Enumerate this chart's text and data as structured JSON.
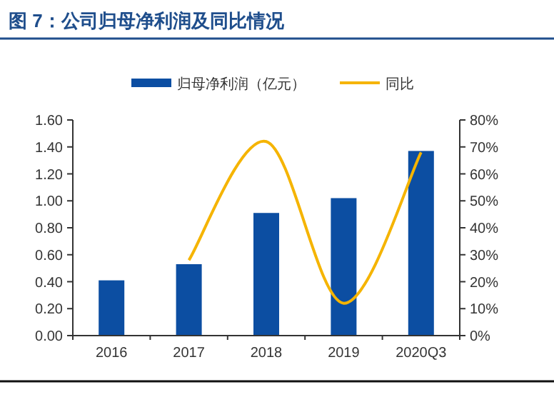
{
  "chart_data": {
    "type": "bar",
    "title": "图 7：公司归母净利润及同比情况",
    "categories": [
      "2016",
      "2017",
      "2018",
      "2019",
      "2020Q3"
    ],
    "series": [
      {
        "name": "归母净利润（亿元）",
        "color": "#0c4ea2",
        "values": [
          0.41,
          0.53,
          0.91,
          1.02,
          1.37
        ]
      },
      {
        "name": "同比",
        "type": "line",
        "axis": "y2",
        "color": "#f5b400",
        "marker": "none",
        "values": [
          null,
          28,
          72,
          12,
          68
        ]
      }
    ],
    "ylim": [
      0,
      1.6
    ],
    "yticks": [
      {
        "value": 0,
        "label": "0.00"
      },
      {
        "value": 0.2,
        "label": "0.20"
      },
      {
        "value": 0.4,
        "label": "0.40"
      },
      {
        "value": 0.6,
        "label": "0.60"
      },
      {
        "value": 0.8,
        "label": "0.80"
      },
      {
        "value": 1.0,
        "label": "1.00"
      },
      {
        "value": 1.2,
        "label": "1.20"
      },
      {
        "value": 1.4,
        "label": "1.40"
      },
      {
        "value": 1.6,
        "label": "1.60"
      }
    ],
    "y2lim": [
      0,
      80
    ],
    "y2ticks": [
      {
        "value": 0,
        "label": "0%"
      },
      {
        "value": 10,
        "label": "10%"
      },
      {
        "value": 20,
        "label": "20%"
      },
      {
        "value": 30,
        "label": "30%"
      },
      {
        "value": 40,
        "label": "40%"
      },
      {
        "value": 50,
        "label": "50%"
      },
      {
        "value": 60,
        "label": "60%"
      },
      {
        "value": 70,
        "label": "70%"
      },
      {
        "value": 80,
        "label": "80%"
      }
    ],
    "legend": "top",
    "grid": false
  }
}
